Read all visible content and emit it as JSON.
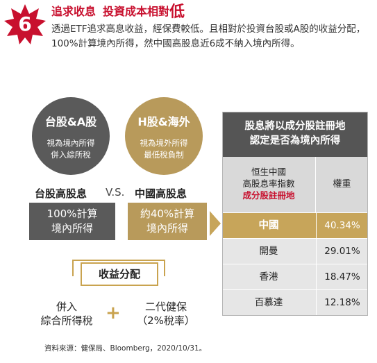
{
  "header": {
    "badge_number": "6",
    "title_part1": "追求收息",
    "title_part2": "投資成本相對",
    "title_emph": "低",
    "description": "透過ETF追求高息收益，經保費較低。且相對於投資台股或A股的收益分配，100%計算境內所得，然中國高股息近6成不納入境內所得。"
  },
  "left": {
    "tw_circle": {
      "title": "台股&A股",
      "sub1": "視為境內所得",
      "sub2": "併入綜所稅"
    },
    "hk_circle": {
      "title": "H股&海外",
      "sub1": "視為境外所得",
      "sub2": "最低稅負制"
    },
    "tw_label": "台股高股息",
    "vs": "V.S.",
    "hk_label": "中國高股息",
    "tw_box": {
      "line1": "100%計算",
      "line2": "境內所得"
    },
    "hk_box": {
      "line1": "約40%計算",
      "line2": "境內所得"
    },
    "distribution": "收益分配",
    "option1": {
      "line1": "併入",
      "line2": "綜合所得稅"
    },
    "plus": "+",
    "option2": {
      "line1": "二代健保",
      "line2": "（2%稅率）"
    }
  },
  "table": {
    "title_line1": "股息將以成分股註冊地",
    "title_line2": "認定是否為境內所得",
    "col1_line1": "恒生中國",
    "col1_line2": "高股息率指數",
    "col1_line3": "成分股註冊地",
    "col2": "權重",
    "rows": [
      {
        "name": "中國",
        "weight": "40.34%"
      },
      {
        "name": "開曼",
        "weight": "29.01%"
      },
      {
        "name": "香港",
        "weight": "18.47%"
      },
      {
        "name": "百慕達",
        "weight": "12.18%"
      }
    ]
  },
  "source": "資料來源：健保局、Bloomberg，2020/10/31。",
  "colors": {
    "accent_red": "#c8102e",
    "gold": "#b89a5b",
    "dark_gray": "#5a5a5a"
  }
}
